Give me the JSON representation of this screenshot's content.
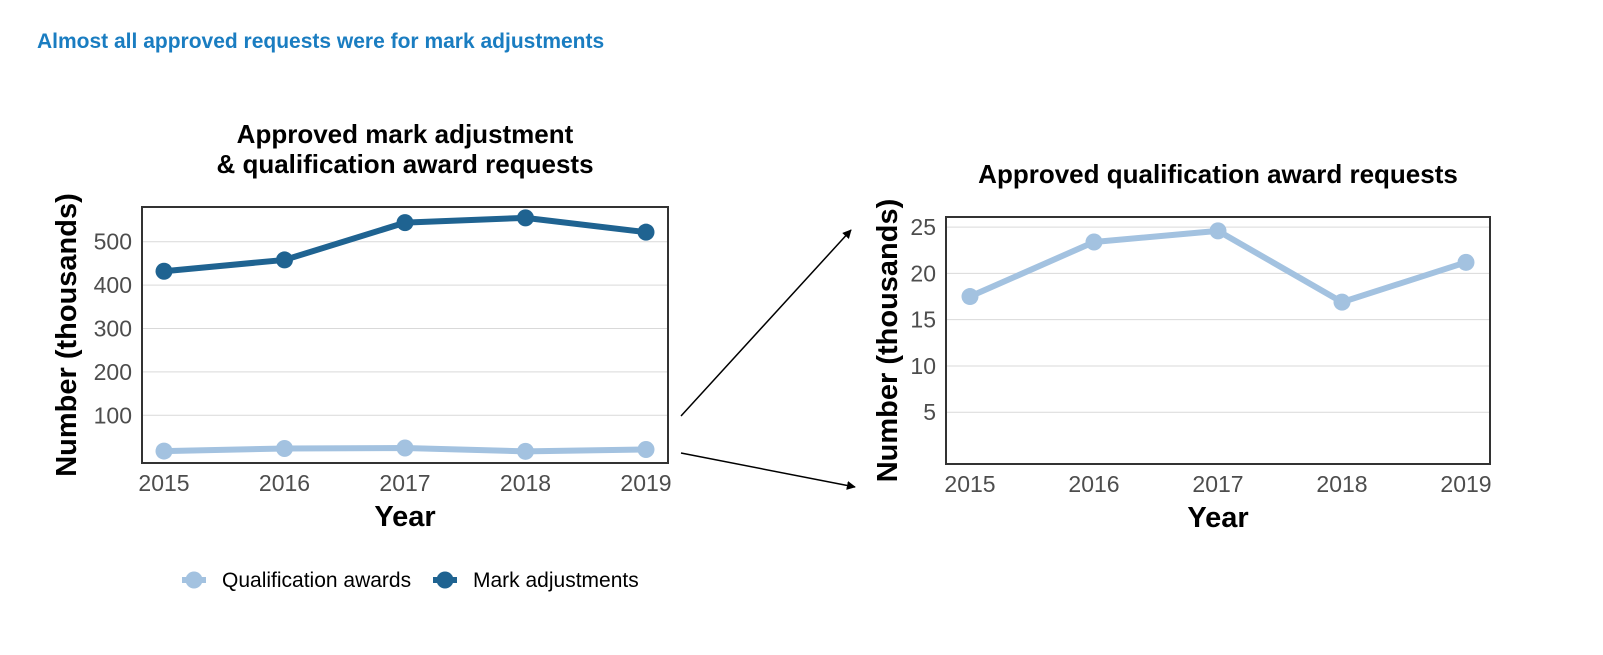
{
  "heading": "Almost all approved requests were for mark adjustments",
  "colors": {
    "heading": "#1a7dc1",
    "qualification_awards": "#a3c2e0",
    "mark_adjustments": "#1f6391"
  },
  "legend": {
    "position": "bottom-left",
    "items": [
      "Qualification awards",
      "Mark adjustments"
    ]
  },
  "chart_data": [
    {
      "type": "line",
      "title_lines": [
        "Approved mark adjustment",
        "& qualification award requests"
      ],
      "xlabel": "Year",
      "ylabel": "Number (thousands)",
      "categories": [
        "2015",
        "2016",
        "2017",
        "2018",
        "2019"
      ],
      "x_ticks": [
        "2015",
        "2016",
        "2017",
        "2018",
        "2019"
      ],
      "y_ticks": [
        "100",
        "200",
        "300",
        "400",
        "500"
      ],
      "ylim": [
        -10,
        580
      ],
      "grid": "horizontal",
      "series": [
        {
          "name": "Qualification awards",
          "color": "#a3c2e0",
          "values": [
            17.5,
            23.4,
            24.6,
            16.9,
            21.2
          ]
        },
        {
          "name": "Mark adjustments",
          "color": "#1f6391",
          "values": [
            432,
            458,
            544,
            555,
            522
          ]
        }
      ]
    },
    {
      "type": "line",
      "title_lines": [
        "Approved qualification award requests"
      ],
      "xlabel": "Year",
      "ylabel": "Number (thousands)",
      "categories": [
        "2015",
        "2016",
        "2017",
        "2018",
        "2019"
      ],
      "x_ticks": [
        "2015",
        "2016",
        "2017",
        "2018",
        "2019"
      ],
      "y_ticks": [
        "5",
        "10",
        "15",
        "20",
        "25"
      ],
      "ylim": [
        -0.6,
        26.1
      ],
      "grid": "horizontal",
      "series": [
        {
          "name": "Qualification awards",
          "color": "#a3c2e0",
          "values": [
            17.5,
            23.4,
            24.6,
            16.9,
            21.2
          ]
        }
      ]
    }
  ]
}
